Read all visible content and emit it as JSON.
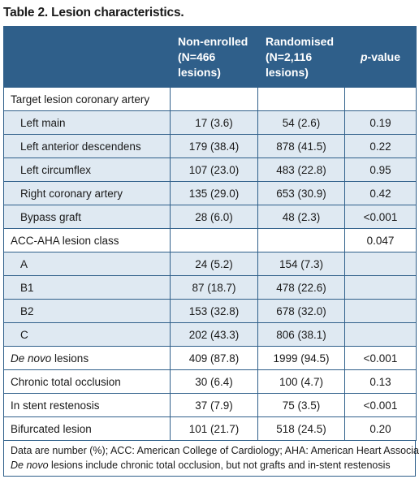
{
  "title": "Table 2. Lesion characteristics.",
  "header": {
    "col1": "",
    "col2_line1": "Non-enrolled",
    "col2_line2": "(N=466",
    "col2_line3": "lesions)",
    "col3_line1": "Randomised",
    "col3_line2": "(N=2,116",
    "col3_line3": "lesions)",
    "col4_italic": "p",
    "col4_rest": "-value"
  },
  "rows": [
    {
      "label": "Target lesion coronary artery",
      "italic_prefix": "",
      "c2": "",
      "c3": "",
      "c4": "",
      "sub": false
    },
    {
      "label": "Left main",
      "italic_prefix": "",
      "c2": "17 (3.6)",
      "c3": "54 (2.6)",
      "c4": "0.19",
      "sub": true
    },
    {
      "label": "Left anterior descendens",
      "italic_prefix": "",
      "c2": "179 (38.4)",
      "c3": "878 (41.5)",
      "c4": "0.22",
      "sub": true
    },
    {
      "label": "Left circumflex",
      "italic_prefix": "",
      "c2": "107 (23.0)",
      "c3": "483 (22.8)",
      "c4": "0.95",
      "sub": true
    },
    {
      "label": "Right coronary artery",
      "italic_prefix": "",
      "c2": "135 (29.0)",
      "c3": "653 (30.9)",
      "c4": "0.42",
      "sub": true
    },
    {
      "label": "Bypass graft",
      "italic_prefix": "",
      "c2": "28 (6.0)",
      "c3": "48 (2.3)",
      "c4": "<0.001",
      "sub": true
    },
    {
      "label": "ACC-AHA lesion class",
      "italic_prefix": "",
      "c2": "",
      "c3": "",
      "c4": "0.047",
      "sub": false
    },
    {
      "label": "A",
      "italic_prefix": "",
      "c2": "24 (5.2)",
      "c3": "154 (7.3)",
      "c4": "",
      "sub": true
    },
    {
      "label": "B1",
      "italic_prefix": "",
      "c2": "87 (18.7)",
      "c3": "478 (22.6)",
      "c4": "",
      "sub": true
    },
    {
      "label": "B2",
      "italic_prefix": "",
      "c2": "153 (32.8)",
      "c3": "678 (32.0)",
      "c4": "",
      "sub": true
    },
    {
      "label": "C",
      "italic_prefix": "",
      "c2": "202 (43.3)",
      "c3": "806 (38.1)",
      "c4": "",
      "sub": true
    },
    {
      "label": " lesions",
      "italic_prefix": "De novo",
      "c2": "409 (87.8)",
      "c3": "1999 (94.5)",
      "c4": "<0.001",
      "sub": false
    },
    {
      "label": "Chronic total occlusion",
      "italic_prefix": "",
      "c2": "30 (6.4)",
      "c3": "100 (4.7)",
      "c4": "0.13",
      "sub": false
    },
    {
      "label": "In stent restenosis",
      "italic_prefix": "",
      "c2": "37 (7.9)",
      "c3": "75 (3.5)",
      "c4": "<0.001",
      "sub": false
    },
    {
      "label": "Bifurcated lesion",
      "italic_prefix": "",
      "c2": "101 (21.7)",
      "c3": "518 (24.5)",
      "c4": "0.20",
      "sub": false
    }
  ],
  "footnote": {
    "line1": "Data are number (%); ACC: American College of Cardiology; AHA: American Heart Association;",
    "line2_italic": "De novo",
    "line2_rest": " lesions include chronic total occlusion, but not grafts and in-stent restenosis"
  },
  "colors": {
    "header_bg": "#2f5f8a",
    "sub_row_bg": "#dfe9f2",
    "border": "#2f5f8a"
  }
}
